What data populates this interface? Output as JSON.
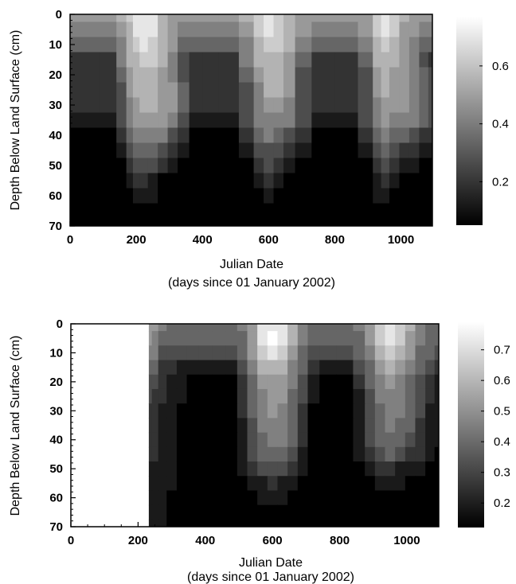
{
  "chart_data": [
    {
      "type": "heatmap",
      "title": "",
      "xlabel": "Julian Date",
      "xlabel_sub": "(days since 01 January 2002)",
      "ylabel": "Depth Below Land Surface (cm)",
      "xlim": [
        0,
        1095
      ],
      "ylim": [
        0,
        70
      ],
      "y_inverted": true,
      "xticks": [
        0,
        200,
        400,
        600,
        800,
        1000
      ],
      "yticks": [
        0,
        10,
        20,
        30,
        40,
        50,
        60,
        70
      ],
      "data_start_x": 0,
      "colorbar": {
        "min": 0.05,
        "max": 0.77,
        "ticks": [
          0.2,
          0.4,
          0.6
        ],
        "labels": [
          "0.2",
          "0.4",
          "0.6"
        ]
      },
      "x": [
        0,
        60,
        120,
        160,
        180,
        200,
        220,
        250,
        280,
        310,
        340,
        380,
        420,
        480,
        540,
        570,
        600,
        630,
        660,
        700,
        760,
        840,
        900,
        930,
        950,
        980,
        1010,
        1040,
        1070,
        1095
      ],
      "depths": [
        0,
        5,
        10,
        15,
        20,
        25,
        30,
        35,
        40,
        45,
        50,
        55,
        60,
        65,
        70
      ],
      "values": [
        [
          0.45,
          0.45,
          0.45,
          0.52,
          0.6,
          0.7,
          0.72,
          0.68,
          0.55,
          0.48,
          0.45,
          0.45,
          0.45,
          0.45,
          0.52,
          0.62,
          0.7,
          0.66,
          0.55,
          0.48,
          0.45,
          0.45,
          0.5,
          0.65,
          0.72,
          0.62,
          0.52,
          0.48,
          0.45,
          0.45
        ],
        [
          0.4,
          0.4,
          0.4,
          0.48,
          0.58,
          0.7,
          0.72,
          0.68,
          0.56,
          0.48,
          0.42,
          0.4,
          0.4,
          0.4,
          0.48,
          0.62,
          0.7,
          0.66,
          0.55,
          0.46,
          0.4,
          0.4,
          0.46,
          0.64,
          0.72,
          0.6,
          0.5,
          0.45,
          0.42,
          0.4
        ],
        [
          0.32,
          0.32,
          0.32,
          0.44,
          0.55,
          0.65,
          0.68,
          0.65,
          0.55,
          0.45,
          0.35,
          0.32,
          0.32,
          0.32,
          0.44,
          0.58,
          0.66,
          0.62,
          0.52,
          0.4,
          0.32,
          0.32,
          0.4,
          0.58,
          0.66,
          0.56,
          0.48,
          0.42,
          0.36,
          0.32
        ],
        [
          0.18,
          0.18,
          0.18,
          0.38,
          0.52,
          0.58,
          0.6,
          0.6,
          0.52,
          0.42,
          0.28,
          0.18,
          0.18,
          0.18,
          0.38,
          0.52,
          0.58,
          0.56,
          0.48,
          0.32,
          0.18,
          0.18,
          0.32,
          0.52,
          0.58,
          0.52,
          0.46,
          0.4,
          0.3,
          0.22
        ],
        [
          0.18,
          0.18,
          0.18,
          0.34,
          0.48,
          0.55,
          0.56,
          0.56,
          0.5,
          0.44,
          0.3,
          0.18,
          0.18,
          0.18,
          0.34,
          0.48,
          0.54,
          0.54,
          0.46,
          0.3,
          0.18,
          0.18,
          0.3,
          0.48,
          0.54,
          0.5,
          0.46,
          0.42,
          0.32,
          0.25
        ],
        [
          0.18,
          0.18,
          0.18,
          0.3,
          0.45,
          0.52,
          0.54,
          0.54,
          0.5,
          0.45,
          0.32,
          0.18,
          0.18,
          0.18,
          0.3,
          0.44,
          0.52,
          0.52,
          0.46,
          0.3,
          0.18,
          0.18,
          0.3,
          0.46,
          0.52,
          0.5,
          0.46,
          0.44,
          0.34,
          0.28
        ],
        [
          0.16,
          0.16,
          0.16,
          0.28,
          0.42,
          0.5,
          0.52,
          0.52,
          0.5,
          0.45,
          0.32,
          0.16,
          0.16,
          0.16,
          0.28,
          0.42,
          0.5,
          0.5,
          0.44,
          0.3,
          0.16,
          0.16,
          0.28,
          0.44,
          0.5,
          0.48,
          0.46,
          0.44,
          0.35,
          0.3
        ],
        [
          0.14,
          0.14,
          0.14,
          0.24,
          0.38,
          0.46,
          0.48,
          0.48,
          0.46,
          0.42,
          0.28,
          0.14,
          0.14,
          0.14,
          0.24,
          0.38,
          0.44,
          0.44,
          0.4,
          0.26,
          0.14,
          0.14,
          0.24,
          0.4,
          0.46,
          0.44,
          0.42,
          0.4,
          0.32,
          0.26
        ],
        [
          0.08,
          0.08,
          0.08,
          0.16,
          0.32,
          0.4,
          0.42,
          0.42,
          0.38,
          0.3,
          0.18,
          0.08,
          0.08,
          0.08,
          0.16,
          0.32,
          0.38,
          0.36,
          0.3,
          0.16,
          0.08,
          0.08,
          0.16,
          0.34,
          0.38,
          0.36,
          0.34,
          0.3,
          0.22,
          0.18
        ],
        [
          0.07,
          0.07,
          0.07,
          0.1,
          0.26,
          0.34,
          0.34,
          0.32,
          0.26,
          0.16,
          0.09,
          0.07,
          0.07,
          0.07,
          0.1,
          0.26,
          0.3,
          0.28,
          0.2,
          0.1,
          0.07,
          0.07,
          0.1,
          0.28,
          0.32,
          0.28,
          0.22,
          0.16,
          0.12,
          0.1
        ],
        [
          0.06,
          0.06,
          0.06,
          0.08,
          0.18,
          0.28,
          0.28,
          0.24,
          0.16,
          0.09,
          0.06,
          0.06,
          0.06,
          0.06,
          0.08,
          0.2,
          0.24,
          0.2,
          0.12,
          0.07,
          0.06,
          0.06,
          0.08,
          0.22,
          0.24,
          0.18,
          0.12,
          0.09,
          0.07,
          0.06
        ],
        [
          0.06,
          0.06,
          0.06,
          0.07,
          0.1,
          0.2,
          0.2,
          0.14,
          0.08,
          0.06,
          0.06,
          0.06,
          0.06,
          0.06,
          0.07,
          0.12,
          0.16,
          0.12,
          0.07,
          0.06,
          0.06,
          0.06,
          0.07,
          0.14,
          0.16,
          0.12,
          0.08,
          0.06,
          0.06,
          0.06
        ],
        [
          0.05,
          0.05,
          0.05,
          0.06,
          0.08,
          0.12,
          0.12,
          0.09,
          0.06,
          0.05,
          0.05,
          0.05,
          0.05,
          0.05,
          0.06,
          0.08,
          0.09,
          0.07,
          0.05,
          0.05,
          0.05,
          0.05,
          0.06,
          0.09,
          0.1,
          0.07,
          0.06,
          0.05,
          0.05,
          0.05
        ],
        [
          0.05,
          0.05,
          0.05,
          0.05,
          0.06,
          0.07,
          0.07,
          0.06,
          0.05,
          0.05,
          0.05,
          0.05,
          0.05,
          0.05,
          0.05,
          0.06,
          0.06,
          0.05,
          0.05,
          0.05,
          0.05,
          0.05,
          0.05,
          0.07,
          0.07,
          0.06,
          0.05,
          0.05,
          0.05,
          0.05
        ],
        [
          0.05,
          0.05,
          0.05,
          0.05,
          0.05,
          0.05,
          0.05,
          0.05,
          0.05,
          0.05,
          0.05,
          0.05,
          0.05,
          0.05,
          0.05,
          0.05,
          0.05,
          0.05,
          0.05,
          0.05,
          0.05,
          0.05,
          0.05,
          0.06,
          0.06,
          0.05,
          0.05,
          0.05,
          0.05,
          0.05
        ]
      ]
    },
    {
      "type": "heatmap",
      "title": "",
      "xlabel": "Julian Date",
      "xlabel_sub": "(days since 01 January 2002)",
      "ylabel": "Depth Below Land Surface (cm)",
      "xlim": [
        0,
        1095
      ],
      "ylim": [
        0,
        70
      ],
      "y_inverted": true,
      "xticks": [
        0,
        200,
        400,
        600,
        800,
        1000
      ],
      "yticks": [
        0,
        10,
        20,
        30,
        40,
        50,
        60,
        70
      ],
      "data_start_x": 232,
      "colorbar": {
        "min": 0.12,
        "max": 0.79,
        "ticks": [
          0.2,
          0.3,
          0.4,
          0.5,
          0.6,
          0.7
        ],
        "labels": [
          "0.2",
          "0.3",
          "0.4",
          "0.5",
          "0.6",
          "0.7"
        ]
      },
      "x": [
        232,
        250,
        270,
        300,
        330,
        360,
        400,
        440,
        480,
        510,
        540,
        570,
        600,
        630,
        660,
        690,
        720,
        760,
        820,
        860,
        890,
        920,
        950,
        980,
        1010,
        1040,
        1070,
        1095
      ],
      "depths": [
        0,
        5,
        10,
        15,
        20,
        25,
        30,
        35,
        40,
        45,
        50,
        55,
        60,
        65,
        70
      ],
      "values": [
        [
          0.55,
          0.5,
          0.44,
          0.42,
          0.42,
          0.42,
          0.42,
          0.42,
          0.42,
          0.44,
          0.55,
          0.7,
          0.75,
          0.72,
          0.6,
          0.48,
          0.42,
          0.42,
          0.42,
          0.44,
          0.52,
          0.66,
          0.74,
          0.68,
          0.56,
          0.46,
          0.42,
          0.42
        ],
        [
          0.52,
          0.48,
          0.4,
          0.38,
          0.38,
          0.38,
          0.38,
          0.38,
          0.38,
          0.42,
          0.54,
          0.7,
          0.76,
          0.72,
          0.58,
          0.46,
          0.38,
          0.38,
          0.38,
          0.42,
          0.52,
          0.66,
          0.74,
          0.66,
          0.54,
          0.44,
          0.4,
          0.38
        ],
        [
          0.48,
          0.44,
          0.34,
          0.32,
          0.3,
          0.3,
          0.3,
          0.3,
          0.3,
          0.36,
          0.5,
          0.64,
          0.7,
          0.66,
          0.54,
          0.42,
          0.3,
          0.3,
          0.3,
          0.36,
          0.48,
          0.6,
          0.66,
          0.6,
          0.5,
          0.42,
          0.36,
          0.3
        ],
        [
          0.4,
          0.36,
          0.28,
          0.25,
          0.22,
          0.2,
          0.2,
          0.2,
          0.2,
          0.3,
          0.44,
          0.56,
          0.6,
          0.58,
          0.48,
          0.36,
          0.24,
          0.2,
          0.2,
          0.3,
          0.42,
          0.52,
          0.56,
          0.52,
          0.46,
          0.38,
          0.3,
          0.24
        ],
        [
          0.32,
          0.3,
          0.25,
          0.22,
          0.18,
          0.12,
          0.12,
          0.12,
          0.12,
          0.25,
          0.4,
          0.5,
          0.54,
          0.52,
          0.44,
          0.32,
          0.16,
          0.12,
          0.12,
          0.24,
          0.36,
          0.46,
          0.5,
          0.48,
          0.42,
          0.34,
          0.26,
          0.2
        ],
        [
          0.3,
          0.28,
          0.24,
          0.2,
          0.16,
          0.12,
          0.12,
          0.12,
          0.12,
          0.24,
          0.38,
          0.48,
          0.52,
          0.5,
          0.42,
          0.3,
          0.16,
          0.12,
          0.12,
          0.22,
          0.34,
          0.44,
          0.48,
          0.46,
          0.4,
          0.32,
          0.24,
          0.2
        ],
        [
          0.28,
          0.26,
          0.22,
          0.19,
          0.15,
          0.12,
          0.12,
          0.12,
          0.12,
          0.23,
          0.36,
          0.46,
          0.5,
          0.48,
          0.4,
          0.28,
          0.15,
          0.12,
          0.12,
          0.21,
          0.33,
          0.42,
          0.46,
          0.44,
          0.38,
          0.3,
          0.22,
          0.18
        ],
        [
          0.26,
          0.25,
          0.21,
          0.18,
          0.15,
          0.12,
          0.12,
          0.12,
          0.12,
          0.22,
          0.35,
          0.44,
          0.48,
          0.46,
          0.38,
          0.26,
          0.14,
          0.12,
          0.12,
          0.2,
          0.31,
          0.4,
          0.44,
          0.42,
          0.36,
          0.28,
          0.21,
          0.17
        ],
        [
          0.25,
          0.24,
          0.2,
          0.17,
          0.14,
          0.12,
          0.12,
          0.12,
          0.12,
          0.2,
          0.33,
          0.42,
          0.46,
          0.44,
          0.36,
          0.24,
          0.14,
          0.12,
          0.12,
          0.19,
          0.29,
          0.38,
          0.42,
          0.4,
          0.33,
          0.26,
          0.2,
          0.16
        ],
        [
          0.24,
          0.23,
          0.2,
          0.17,
          0.14,
          0.12,
          0.12,
          0.12,
          0.12,
          0.18,
          0.3,
          0.38,
          0.42,
          0.4,
          0.32,
          0.21,
          0.13,
          0.12,
          0.12,
          0.17,
          0.26,
          0.34,
          0.36,
          0.34,
          0.28,
          0.23,
          0.18,
          0.15
        ],
        [
          0.22,
          0.22,
          0.19,
          0.16,
          0.13,
          0.12,
          0.12,
          0.12,
          0.12,
          0.16,
          0.24,
          0.3,
          0.32,
          0.3,
          0.24,
          0.17,
          0.12,
          0.12,
          0.12,
          0.15,
          0.2,
          0.24,
          0.24,
          0.22,
          0.19,
          0.17,
          0.15,
          0.14
        ],
        [
          0.2,
          0.21,
          0.18,
          0.16,
          0.13,
          0.12,
          0.12,
          0.12,
          0.12,
          0.14,
          0.18,
          0.22,
          0.24,
          0.22,
          0.18,
          0.14,
          0.12,
          0.12,
          0.12,
          0.13,
          0.15,
          0.17,
          0.18,
          0.17,
          0.15,
          0.14,
          0.13,
          0.13
        ],
        [
          0.19,
          0.2,
          0.18,
          0.15,
          0.13,
          0.12,
          0.12,
          0.12,
          0.12,
          0.13,
          0.14,
          0.16,
          0.17,
          0.16,
          0.14,
          0.13,
          0.12,
          0.12,
          0.12,
          0.12,
          0.13,
          0.14,
          0.14,
          0.14,
          0.13,
          0.13,
          0.12,
          0.12
        ],
        [
          0.18,
          0.19,
          0.17,
          0.15,
          0.12,
          0.12,
          0.12,
          0.12,
          0.12,
          0.12,
          0.13,
          0.13,
          0.13,
          0.13,
          0.12,
          0.12,
          0.12,
          0.12,
          0.12,
          0.12,
          0.12,
          0.12,
          0.12,
          0.12,
          0.12,
          0.12,
          0.12,
          0.12
        ],
        [
          0.17,
          0.18,
          0.16,
          0.14,
          0.12,
          0.12,
          0.12,
          0.12,
          0.12,
          0.12,
          0.12,
          0.12,
          0.12,
          0.12,
          0.12,
          0.12,
          0.12,
          0.12,
          0.12,
          0.12,
          0.12,
          0.12,
          0.12,
          0.12,
          0.12,
          0.12,
          0.12,
          0.12
        ]
      ]
    }
  ]
}
